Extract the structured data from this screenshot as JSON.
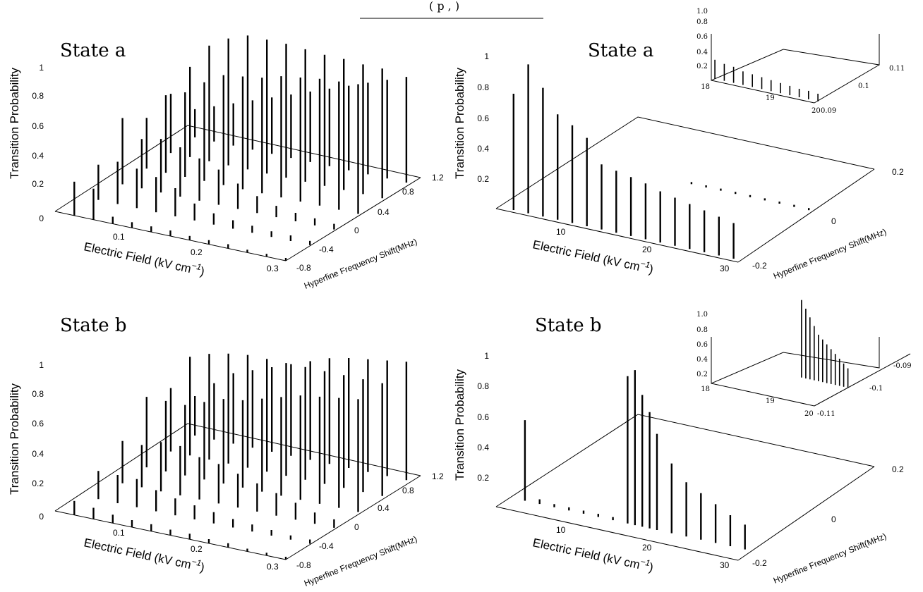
{
  "page": {
    "top_fragment": "(   p   ,   )",
    "colors": {
      "ink": "#000000",
      "background": "#ffffff"
    }
  },
  "chart_data": [
    {
      "id": "top-left",
      "type": "bar3d",
      "title": "State a",
      "xlabel": "Electric Field (kV cm",
      "xlabel_sup": "−1",
      "xlabel_close": ")",
      "ylabel": "Hyperfine Frequency Shift(MHz)",
      "zlabel": "Transition Probability",
      "x_ticks": [
        "0.1",
        "0.2",
        "0.3"
      ],
      "y_ticks": [
        "-0.8",
        "-0.4",
        "0",
        "0.4",
        "0.8",
        "1.2"
      ],
      "z_ticks": [
        "0",
        "0.2",
        "0.4",
        "0.6",
        "0.8",
        "1"
      ],
      "xlim": [
        0.0,
        0.3
      ],
      "ylim": [
        -1.0,
        1.2
      ],
      "zlim": [
        0,
        1
      ],
      "bars_per_field": [
        [
          0.98,
          0.18
        ],
        [
          0.92,
          0.2
        ],
        [
          0.86,
          0.22
        ],
        [
          0.83,
          0.12
        ],
        [
          0.82,
          0.1
        ],
        [
          0.8,
          0.08
        ]
      ],
      "fields": [
        0.025,
        0.05,
        0.075,
        0.1,
        0.125,
        0.15,
        0.175,
        0.2,
        0.225,
        0.25,
        0.275,
        0.3
      ],
      "levels": [
        1.0,
        0.6,
        0.2,
        -0.2,
        -0.6,
        -1.0
      ],
      "probabilities": [
        [
          0.2,
          0.42,
          0.36,
          0.47,
          0.25,
          0.24
        ],
        [
          0.25,
          0.64,
          0.55,
          0.35,
          0.3,
          0.22
        ],
        [
          0.3,
          0.82,
          0.6,
          0.38,
          0.28,
          0.05
        ],
        [
          0.35,
          0.9,
          0.7,
          0.35,
          0.25,
          0.04
        ],
        [
          0.4,
          0.95,
          0.78,
          0.3,
          0.2,
          0.04
        ],
        [
          0.45,
          0.95,
          0.8,
          0.25,
          0.12,
          0.04
        ],
        [
          0.5,
          0.95,
          0.82,
          0.18,
          0.08,
          0.03
        ],
        [
          0.55,
          0.94,
          0.86,
          0.12,
          0.06,
          0.03
        ],
        [
          0.6,
          0.93,
          0.88,
          0.08,
          0.05,
          0.03
        ],
        [
          0.65,
          0.93,
          0.9,
          0.06,
          0.04,
          0.02
        ],
        [
          0.7,
          0.92,
          0.91,
          0.05,
          0.04,
          0.02
        ],
        [
          0.75,
          0.92,
          0.92,
          0.04,
          0.03,
          0.02
        ]
      ]
    },
    {
      "id": "top-right",
      "type": "bar3d",
      "title": "State a",
      "xlabel": "Electric Field (kV cm",
      "xlabel_sup": "−1",
      "xlabel_close": ")",
      "ylabel": "Hyperfine Frequency Shift(MHz)",
      "zlabel": "Transition Probability",
      "x_ticks": [
        "10",
        "20",
        "30"
      ],
      "y_ticks": [
        "-0.2",
        "0",
        "0.2"
      ],
      "z_ticks": [
        "0.2",
        "0.4",
        "0.6",
        "0.8",
        "1"
      ],
      "xlim": [
        0,
        33
      ],
      "ylim": [
        -0.25,
        0.25
      ],
      "zlim": [
        0,
        1
      ],
      "fields": [
        2,
        4,
        6,
        8,
        10,
        12,
        14,
        16,
        18,
        20,
        22,
        24,
        26,
        28,
        30,
        32
      ],
      "probabilities_high": [
        0.75,
        0.96,
        0.83,
        0.68,
        0.63,
        0.57,
        0.42,
        0.4,
        0.38,
        0.36,
        0.33,
        0.31,
        0.29,
        0.27,
        0.25,
        0.23
      ],
      "inset": {
        "x_ticks": [
          "18",
          "19",
          "20"
        ],
        "y_ticks": [
          "0.09",
          "0.1",
          "0.11"
        ],
        "z_ticks": [
          "0.2",
          "0.4",
          "0.6",
          "0.8",
          "1.0"
        ],
        "probabilities": [
          0.45,
          0.4,
          0.38,
          0.32,
          0.3,
          0.28,
          0.26,
          0.24,
          0.22,
          0.2,
          0.2,
          0.18
        ]
      }
    },
    {
      "id": "bottom-left",
      "type": "bar3d",
      "title": "State b",
      "xlabel": "Electric Field (kV cm",
      "xlabel_sup": "−1",
      "xlabel_close": ")",
      "ylabel": "Hyperfine Frequency Shift(MHz)",
      "zlabel": "Transition Probability",
      "x_ticks": [
        "0.1",
        "0.2",
        "0.3"
      ],
      "y_ticks": [
        "-0.8",
        "-0.4",
        "0",
        "0.4",
        "0.8",
        "1.2"
      ],
      "z_ticks": [
        "0",
        "0.2",
        "0.4",
        "0.6",
        "0.8",
        "1"
      ],
      "xlim": [
        0.0,
        0.3
      ],
      "ylim": [
        -1.0,
        1.2
      ],
      "zlim": [
        0,
        1
      ],
      "fields": [
        0.025,
        0.05,
        0.075,
        0.1,
        0.125,
        0.15,
        0.175,
        0.2,
        0.225,
        0.25,
        0.275,
        0.3
      ],
      "levels": [
        1.0,
        0.6,
        0.2,
        -0.2,
        -0.6,
        -1.0
      ],
      "probabilities": [
        [
          0.28,
          0.45,
          0.5,
          0.3,
          0.2,
          0.1
        ],
        [
          0.4,
          0.7,
          0.5,
          0.3,
          0.2,
          0.08
        ],
        [
          0.5,
          0.75,
          0.5,
          0.35,
          0.2,
          0.06
        ],
        [
          0.55,
          0.78,
          0.55,
          0.35,
          0.15,
          0.05
        ],
        [
          0.6,
          0.8,
          0.6,
          0.3,
          0.12,
          0.05
        ],
        [
          0.65,
          0.8,
          0.62,
          0.28,
          0.1,
          0.04
        ],
        [
          0.7,
          0.8,
          0.66,
          0.24,
          0.08,
          0.04
        ],
        [
          0.75,
          0.8,
          0.7,
          0.2,
          0.06,
          0.03
        ],
        [
          0.78,
          0.8,
          0.74,
          0.16,
          0.05,
          0.03
        ],
        [
          0.8,
          0.8,
          0.76,
          0.12,
          0.04,
          0.02
        ],
        [
          0.82,
          0.8,
          0.78,
          0.08,
          0.03,
          0.02
        ],
        [
          0.84,
          0.8,
          0.8,
          0.06,
          0.03,
          0.02
        ]
      ]
    },
    {
      "id": "bottom-right",
      "type": "bar3d",
      "title": "State b",
      "xlabel": "Electric Field (kV cm",
      "xlabel_sup": "−1",
      "xlabel_close": ")",
      "ylabel": "Hyperfine Frequency Shift(MHz)",
      "zlabel": "Transition Probability",
      "x_ticks": [
        "10",
        "20",
        "30"
      ],
      "y_ticks": [
        "-0.2",
        "0",
        "0.2"
      ],
      "z_ticks": [
        "0.2",
        "0.4",
        "0.6",
        "0.8",
        "1"
      ],
      "xlim": [
        0,
        33
      ],
      "ylim": [
        -0.25,
        0.25
      ],
      "zlim": [
        0,
        1
      ],
      "fields": [
        2,
        4,
        6,
        8,
        10,
        12,
        14,
        16,
        17,
        18,
        19,
        20,
        22,
        24,
        26,
        28,
        30,
        32
      ],
      "probabilities_low": [
        0.52,
        0.03,
        0.02,
        0.02,
        0.02,
        0.02,
        0.02,
        0.95,
        1.0,
        0.85,
        0.75,
        0.62,
        0.45,
        0.35,
        0.3,
        0.25,
        0.2,
        0.16
      ],
      "inset": {
        "x_ticks": [
          "18",
          "19",
          "20"
        ],
        "y_ticks": [
          "-0.09",
          "-0.1",
          "-0.11"
        ],
        "z_ticks": [
          "0.2",
          "0.4",
          "0.6",
          "0.8",
          "1.0"
        ],
        "probabilities": [
          1.0,
          0.9,
          0.8,
          0.7,
          0.6,
          0.55,
          0.5,
          0.45,
          0.4,
          0.35,
          0.3,
          0.25
        ]
      }
    }
  ]
}
